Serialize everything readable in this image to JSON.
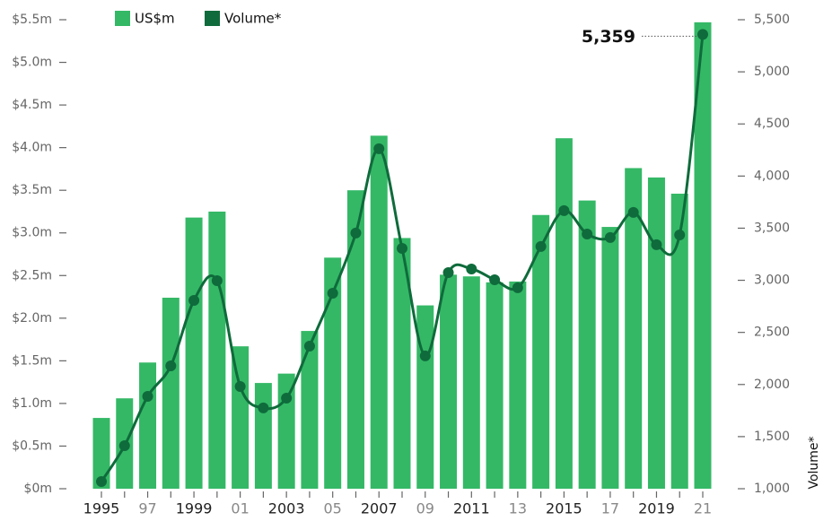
{
  "chart_data": {
    "type": "bar-line",
    "categories": [
      "1995",
      null,
      "97",
      null,
      "1999",
      null,
      "01",
      null,
      "2003",
      null,
      "05",
      null,
      "2007",
      null,
      "09",
      null,
      "2011",
      null,
      "13",
      null,
      "2015",
      null,
      "17",
      null,
      "2019",
      null,
      "21"
    ],
    "series": [
      {
        "name": "US$m",
        "type": "bar",
        "color": "#34b866",
        "axis": "y",
        "values": [
          0.83,
          1.06,
          1.48,
          2.24,
          3.18,
          3.25,
          1.67,
          1.24,
          1.35,
          1.85,
          2.71,
          3.5,
          4.14,
          2.94,
          2.15,
          2.51,
          2.49,
          2.42,
          2.43,
          3.21,
          4.11,
          3.38,
          3.07,
          3.76,
          3.65,
          3.46,
          5.47
        ]
      },
      {
        "name": "Volume*",
        "type": "line",
        "color": "#0f6b3b",
        "axis": "y2",
        "values": [
          1069,
          1413,
          1886,
          2179,
          2807,
          2996,
          1981,
          1775,
          1869,
          2368,
          2876,
          3453,
          4262,
          3306,
          2274,
          3074,
          3108,
          3005,
          2928,
          3324,
          3668,
          3444,
          3410,
          3651,
          3341,
          3435,
          5359
        ],
        "value_labels": [
          null,
          null,
          null,
          null,
          null,
          null,
          null,
          null,
          null,
          null,
          null,
          null,
          null,
          null,
          null,
          null,
          null,
          null,
          null,
          null,
          null,
          null,
          null,
          null,
          null,
          null,
          "5,359"
        ]
      }
    ],
    "ylim": [
      0,
      5.5
    ],
    "yticks": [
      {
        "value": 0,
        "label": "$0m"
      },
      {
        "value": 0.5,
        "label": "$0.5m"
      },
      {
        "value": 1,
        "label": "$1.0m"
      },
      {
        "value": 1.5,
        "label": "$1.5m"
      },
      {
        "value": 2,
        "label": "$2.0m"
      },
      {
        "value": 2.5,
        "label": "$2.5m"
      },
      {
        "value": 3,
        "label": "$3.0m"
      },
      {
        "value": 3.5,
        "label": "$3.5m"
      },
      {
        "value": 4,
        "label": "$4.0m"
      },
      {
        "value": 4.5,
        "label": "$4.5m"
      },
      {
        "value": 5,
        "label": "$5.0m"
      },
      {
        "value": 5.5,
        "label": "$5.5m"
      }
    ],
    "y2label": "Volume*",
    "y2lim": [
      1000,
      5500
    ],
    "y2ticks": [
      {
        "value": 1000,
        "label": "1,000"
      },
      {
        "value": 1500,
        "label": "1,500"
      },
      {
        "value": 2000,
        "label": "2,000"
      },
      {
        "value": 2500,
        "label": "2,500"
      },
      {
        "value": 3000,
        "label": "3,000"
      },
      {
        "value": 3500,
        "label": "3,500"
      },
      {
        "value": 4000,
        "label": "4,000"
      },
      {
        "value": 4500,
        "label": "4,500"
      },
      {
        "value": 5000,
        "label": "5,000"
      },
      {
        "value": 5500,
        "label": "5,500"
      }
    ],
    "legend": "top-left"
  }
}
